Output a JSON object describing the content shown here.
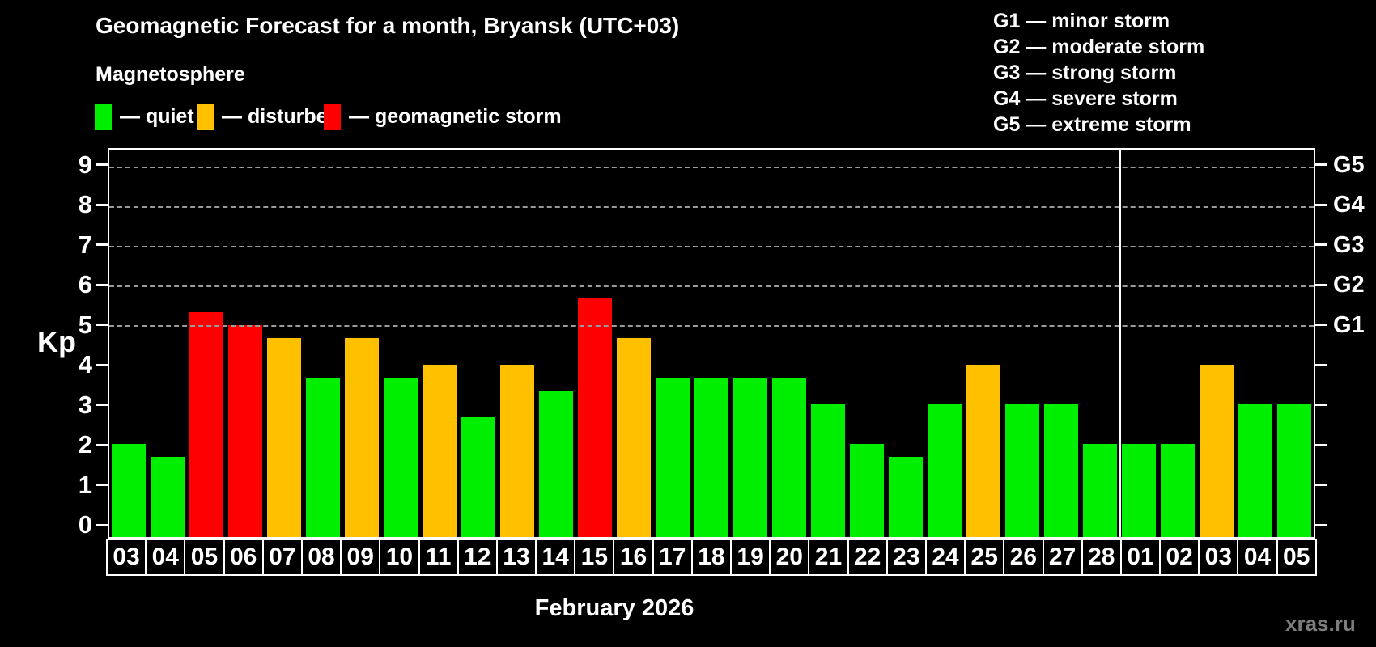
{
  "header": {
    "title": "Geomagnetic Forecast for a month, Bryansk (UTC+03)",
    "subtitle": "Magnetosphere"
  },
  "colors": {
    "background": "#000000",
    "quiet": "#00ee00",
    "disturbed": "#ffc000",
    "storm": "#ff0000",
    "axis": "#ffffff",
    "grid": "#9a9a9a",
    "watermark": "#7d7d7d"
  },
  "legend": [
    {
      "key": "quiet",
      "label": "— quiet"
    },
    {
      "key": "disturbed",
      "label": "— disturbed"
    },
    {
      "key": "storm",
      "label": "— geomagnetic storm"
    }
  ],
  "storm_scale": [
    "G1 — minor storm",
    "G2 — moderate storm",
    "G3 — strong storm",
    "G4 — severe storm",
    "G5 — extreme storm"
  ],
  "chart_data": {
    "type": "bar",
    "title": "Geomagnetic Forecast for a month, Bryansk (UTC+03)",
    "ylabel": "Kp",
    "xlabel": "February 2026",
    "ylim": [
      0,
      9
    ],
    "y_ticks": [
      0,
      1,
      2,
      3,
      4,
      5,
      6,
      7,
      8,
      9
    ],
    "gridlines_at_kp": [
      5,
      6,
      7,
      8,
      9
    ],
    "grid_style": "dashed horizontal lines only at Kp 5-9",
    "right_axis": [
      {
        "kp": 5,
        "label": "G1"
      },
      {
        "kp": 6,
        "label": "G2"
      },
      {
        "kp": 7,
        "label": "G3"
      },
      {
        "kp": 8,
        "label": "G4"
      },
      {
        "kp": 9,
        "label": "G5"
      }
    ],
    "month_separator_before_index": 26,
    "categories": [
      "03",
      "04",
      "05",
      "06",
      "07",
      "08",
      "09",
      "10",
      "11",
      "12",
      "13",
      "14",
      "15",
      "16",
      "17",
      "18",
      "19",
      "20",
      "21",
      "22",
      "23",
      "24",
      "25",
      "26",
      "27",
      "28",
      "01",
      "02",
      "03",
      "04",
      "05"
    ],
    "series": [
      {
        "name": "Kp forecast",
        "values": [
          2,
          1.67,
          5.33,
          5,
          4.67,
          3.67,
          4.67,
          3.67,
          4,
          2.67,
          4,
          3.33,
          5.67,
          4.67,
          3.67,
          3.67,
          3.67,
          3.67,
          3,
          2,
          1.67,
          3,
          4,
          3,
          3,
          2,
          2,
          2,
          4,
          3,
          3
        ],
        "levels": [
          "quiet",
          "quiet",
          "storm",
          "storm",
          "disturbed",
          "quiet",
          "disturbed",
          "quiet",
          "disturbed",
          "quiet",
          "disturbed",
          "quiet",
          "storm",
          "disturbed",
          "quiet",
          "quiet",
          "quiet",
          "quiet",
          "quiet",
          "quiet",
          "quiet",
          "quiet",
          "disturbed",
          "quiet",
          "quiet",
          "quiet",
          "quiet",
          "quiet",
          "disturbed",
          "quiet",
          "quiet"
        ]
      }
    ]
  },
  "footer": {
    "caption": "February 2026",
    "watermark": "xras.ru"
  }
}
